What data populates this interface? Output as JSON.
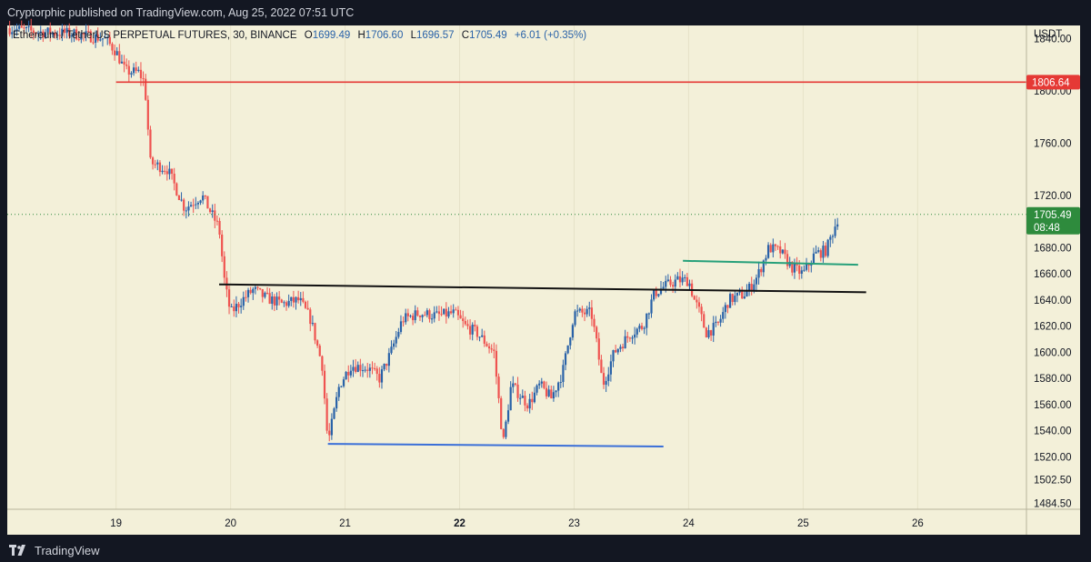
{
  "header": {
    "published_text": "Cryptorphic published on TradingView.com, Aug 25, 2022 07:51 UTC"
  },
  "legend": {
    "symbol_text": "Ethereum / TetherUS PERPETUAL FUTURES, 30, BINANCE",
    "open_label": "O",
    "open": "1699.49",
    "high_label": "H",
    "high": "1706.60",
    "low_label": "L",
    "low": "1696.57",
    "close_label": "C",
    "close": "1705.49",
    "change": "+6.01 (+0.35%)"
  },
  "footer": {
    "brand": "TradingView",
    "logo_icon": "tradingview-logo-icon"
  },
  "colors": {
    "background": "#131722",
    "chart_bg": "#f3f0d9",
    "up": "#2962a8",
    "down": "#ef5350",
    "resistance_line": "#e53935",
    "neckline": "#111111",
    "support_line": "#3a6fd8",
    "breakout_line": "#26a07a",
    "price_badge": "#2e8b3d"
  },
  "chart_data": {
    "type": "candlestick",
    "currency_label": "USDT",
    "y_ticks": [
      "1840.00",
      "1800.00",
      "1760.00",
      "1720.00",
      "1680.00",
      "1660.00",
      "1640.00",
      "1620.00",
      "1600.00",
      "1580.00",
      "1560.00",
      "1540.00",
      "1520.00",
      "1502.50",
      "1484.50"
    ],
    "x_ticks": [
      "19",
      "20",
      "21",
      "22",
      "23",
      "24",
      "25",
      "26"
    ],
    "x_tick_days": [
      19,
      20,
      21,
      22,
      23,
      24,
      25,
      26
    ],
    "bold_x_tick": "22",
    "x_range_days": [
      18.05,
      26.95
    ],
    "y_range": [
      1480,
      1850
    ],
    "price_labels": {
      "resistance": "1806.64",
      "last_price": "1705.49",
      "countdown": "08:48"
    },
    "lines": [
      {
        "name": "resistance",
        "type": "horizontal",
        "price": 1806.64,
        "start_day": 19.0,
        "color_key": "resistance_line"
      },
      {
        "name": "neckline",
        "type": "segment",
        "x1_day": 19.9,
        "y1": 1652,
        "x2_day": 25.55,
        "y2": 1646,
        "color_key": "neckline"
      },
      {
        "name": "support",
        "type": "segment",
        "x1_day": 20.85,
        "y1": 1530,
        "x2_day": 23.78,
        "y2": 1528,
        "color_key": "support_line"
      },
      {
        "name": "breakout",
        "type": "segment",
        "x1_day": 23.95,
        "y1": 1670,
        "x2_day": 25.48,
        "y2": 1667,
        "color_key": "breakout_line"
      }
    ],
    "price_path": [
      [
        18.05,
        1848
      ],
      [
        18.3,
        1845
      ],
      [
        18.6,
        1844
      ],
      [
        18.9,
        1840
      ],
      [
        19.0,
        1830
      ],
      [
        19.08,
        1815
      ],
      [
        19.2,
        1814
      ],
      [
        19.25,
        1806
      ],
      [
        19.3,
        1745
      ],
      [
        19.45,
        1740
      ],
      [
        19.6,
        1710
      ],
      [
        19.75,
        1720
      ],
      [
        19.9,
        1695
      ],
      [
        19.95,
        1652
      ],
      [
        20.0,
        1630
      ],
      [
        20.1,
        1640
      ],
      [
        20.2,
        1648
      ],
      [
        20.3,
        1642
      ],
      [
        20.45,
        1637
      ],
      [
        20.6,
        1640
      ],
      [
        20.7,
        1625
      ],
      [
        20.8,
        1590
      ],
      [
        20.85,
        1530
      ],
      [
        20.95,
        1575
      ],
      [
        21.05,
        1590
      ],
      [
        21.2,
        1588
      ],
      [
        21.3,
        1580
      ],
      [
        21.4,
        1600
      ],
      [
        21.5,
        1625
      ],
      [
        21.65,
        1630
      ],
      [
        21.8,
        1628
      ],
      [
        21.95,
        1630
      ],
      [
        22.05,
        1620
      ],
      [
        22.15,
        1615
      ],
      [
        22.3,
        1600
      ],
      [
        22.38,
        1530
      ],
      [
        22.45,
        1575
      ],
      [
        22.6,
        1560
      ],
      [
        22.7,
        1575
      ],
      [
        22.8,
        1565
      ],
      [
        22.9,
        1585
      ],
      [
        23.0,
        1630
      ],
      [
        23.15,
        1630
      ],
      [
        23.2,
        1605
      ],
      [
        23.25,
        1575
      ],
      [
        23.35,
        1600
      ],
      [
        23.5,
        1615
      ],
      [
        23.6,
        1620
      ],
      [
        23.7,
        1645
      ],
      [
        23.78,
        1650
      ],
      [
        23.9,
        1655
      ],
      [
        24.0,
        1655
      ],
      [
        24.05,
        1640
      ],
      [
        24.1,
        1630
      ],
      [
        24.15,
        1615
      ],
      [
        24.25,
        1620
      ],
      [
        24.35,
        1640
      ],
      [
        24.5,
        1645
      ],
      [
        24.6,
        1658
      ],
      [
        24.7,
        1680
      ],
      [
        24.8,
        1677
      ],
      [
        24.9,
        1665
      ],
      [
        25.0,
        1660
      ],
      [
        25.1,
        1675
      ],
      [
        25.2,
        1678
      ],
      [
        25.3,
        1702
      ],
      [
        25.32,
        1705.49
      ]
    ]
  }
}
